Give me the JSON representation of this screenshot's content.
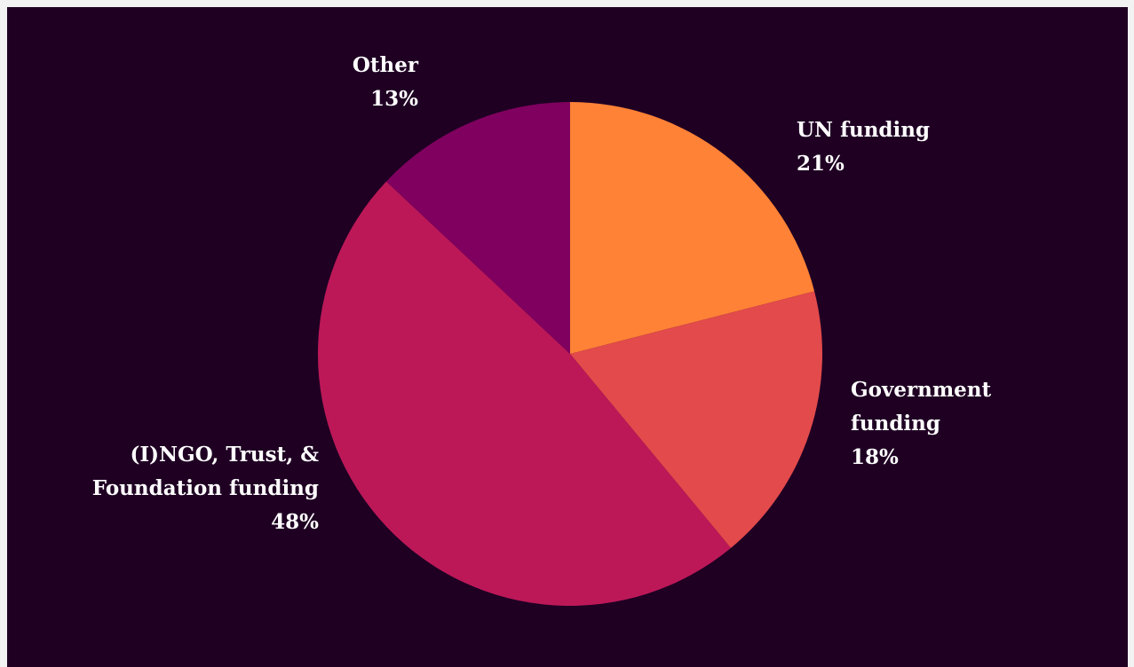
{
  "colors": {
    "page_bg": "#f2f2f2",
    "panel_bg": "#1f0023",
    "label_text": "#ffffff"
  },
  "chart_data": {
    "type": "pie",
    "title": "",
    "start_angle_deg": 0,
    "direction": "clockwise",
    "slices": [
      {
        "id": "un",
        "label_lines": [
          "UN funding"
        ],
        "pct_label": "21%",
        "value": 21,
        "color": "#ff8236"
      },
      {
        "id": "gov",
        "label_lines": [
          "Government",
          "funding"
        ],
        "pct_label": "18%",
        "value": 18,
        "color": "#e34a4b"
      },
      {
        "id": "ingo",
        "label_lines": [
          "(I)NGO, Trust, &",
          "Foundation funding"
        ],
        "pct_label": "48%",
        "value": 48,
        "color": "#bc1858"
      },
      {
        "id": "other",
        "label_lines": [
          "Other"
        ],
        "pct_label": "13%",
        "value": 13,
        "color": "#80005f"
      }
    ]
  }
}
